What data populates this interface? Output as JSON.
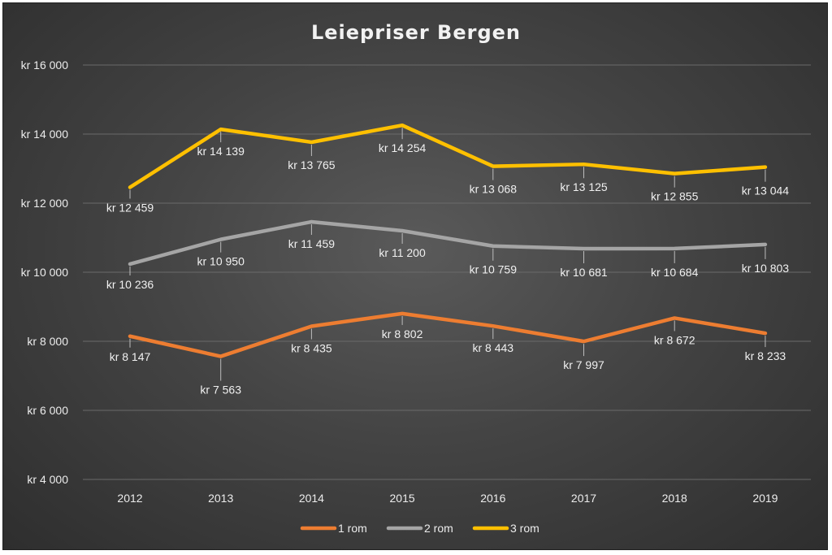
{
  "chart_data": {
    "type": "line",
    "title": "Leiepriser Bergen",
    "categories": [
      "2012",
      "2013",
      "2014",
      "2015",
      "2016",
      "2017",
      "2018",
      "2019"
    ],
    "ylim": [
      4000,
      16000
    ],
    "yticks": [
      4000,
      6000,
      8000,
      10000,
      12000,
      14000,
      16000
    ],
    "ytick_labels": [
      "kr 4 000",
      "kr 6 000",
      "kr 8 000",
      "kr 10 000",
      "kr 12 000",
      "kr 14 000",
      "kr 16 000"
    ],
    "grid": true,
    "legend_position": "bottom",
    "series": [
      {
        "name": "1 rom",
        "color": "#ED7D31",
        "values": [
          8147,
          7563,
          8435,
          8802,
          8443,
          7997,
          8672,
          8233
        ],
        "labels": [
          "kr 8 147",
          "kr 7 563",
          "kr 8 435",
          "kr 8 802",
          "kr 8 443",
          "kr 7 997",
          "kr 8 672",
          "kr 8 233"
        ]
      },
      {
        "name": "2 rom",
        "color": "#A5A5A5",
        "values": [
          10236,
          10950,
          11459,
          11200,
          10759,
          10681,
          10684,
          10803
        ],
        "labels": [
          "kr 10 236",
          "kr 10 950",
          "kr 11 459",
          "kr 11 200",
          "kr 10 759",
          "kr 10 681",
          "kr 10 684",
          "kr 10 803"
        ]
      },
      {
        "name": "3 rom",
        "color": "#FFC000",
        "values": [
          12459,
          14139,
          13765,
          14254,
          13068,
          13125,
          12855,
          13044
        ],
        "labels": [
          "kr 12 459",
          "kr 14 139",
          "kr 13 765",
          "kr 14 254",
          "kr 13 068",
          "kr 13 125",
          "kr 12 855",
          "kr 13 044"
        ]
      }
    ]
  }
}
